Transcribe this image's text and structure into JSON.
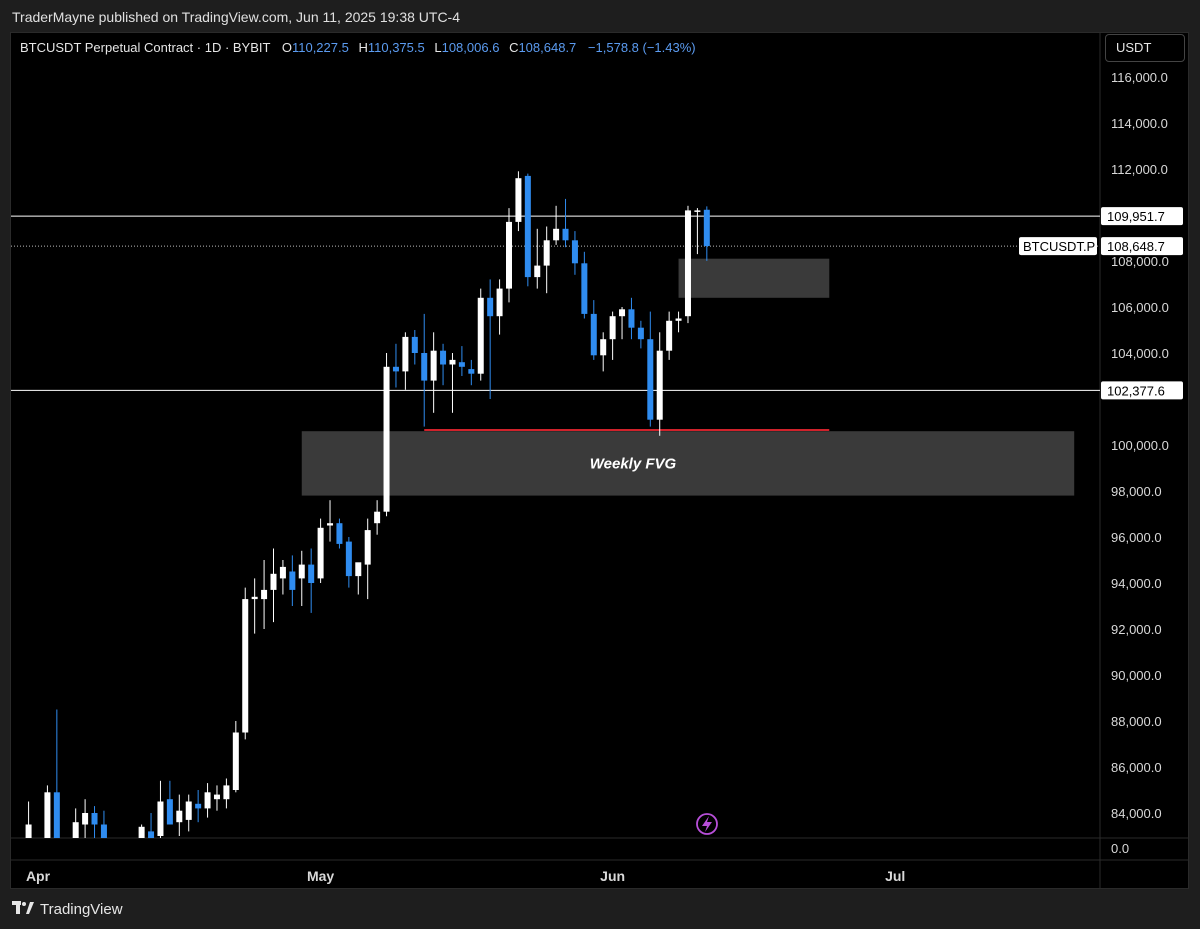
{
  "publish_line": "TraderMayne published on TradingView.com, Jun 11, 2025 19:38 UTC-4",
  "header": {
    "symbol": "BTCUSDT Perpetual Contract · 1D · BYBIT",
    "o_label": "O",
    "o_value": "110,227.5",
    "h_label": "H",
    "h_value": "110,375.5",
    "l_label": "L",
    "l_value": "108,006.6",
    "c_label": "C",
    "c_value": "108,648.7",
    "change": "−1,578.8 (−1.43%)"
  },
  "currency": "USDT",
  "footer_brand": "TradingView",
  "colors": {
    "background": "#000000",
    "up_candle": "#ffffff",
    "down_candle": "#2f8cf0",
    "level_line": "#ffffff",
    "fvg_line": "#d0222b",
    "zone_fill": "#3a3a3a",
    "accent": "#5b9bf0",
    "lightning": "#b84fd9"
  },
  "icons": {
    "lightning": "lightning-icon",
    "logo": "tradingview-logo-icon"
  },
  "chart_data": {
    "type": "candlestick",
    "ylim": [
      82800,
      117000
    ],
    "y_ticks": [
      "116,000.0",
      "114,000.0",
      "112,000.0",
      "108,000.0",
      "106,000.0",
      "104,000.0",
      "100,000.0",
      "98,000.0",
      "96,000.0",
      "94,000.0",
      "92,000.0",
      "90,000.0",
      "88,000.0",
      "86,000.0",
      "84,000.0"
    ],
    "y_tick_values": [
      116000,
      114000,
      112000,
      108000,
      106000,
      104000,
      100000,
      98000,
      96000,
      94000,
      92000,
      90000,
      88000,
      86000,
      84000
    ],
    "zero_label": "0.0",
    "x_ticks": [
      "Apr",
      "May",
      "Jun",
      "Jul"
    ],
    "x_tick_values": [
      "2025-04-01",
      "2025-05-01",
      "2025-06-01",
      "2025-07-01"
    ],
    "horizontal_levels": [
      {
        "value": 109951.7,
        "label": "109,951.7"
      },
      {
        "value": 102377.6,
        "label": "102,377.6"
      }
    ],
    "current_price": {
      "value": 108648.7,
      "label": "108,648.7",
      "symbol": "BTCUSDT.P"
    },
    "zones": [
      {
        "label": "",
        "top": 108100,
        "bottom": 106400,
        "from": "2025-06-08",
        "to": "2025-06-24"
      },
      {
        "label": "Weekly FVG",
        "top": 100600,
        "bottom": 97800,
        "from": "2025-04-29",
        "to": "2025-07-20"
      }
    ],
    "red_line": {
      "value": 100650,
      "from": "2025-05-12",
      "to": "2025-06-24"
    },
    "candles": [
      {
        "d": "2025-03-31",
        "o": 82800,
        "h": 84500,
        "l": 82700,
        "c": 83500
      },
      {
        "d": "2025-04-02",
        "o": 82700,
        "h": 85200,
        "l": 82700,
        "c": 84900
      },
      {
        "d": "2025-04-03",
        "o": 84900,
        "h": 88500,
        "l": 82700,
        "c": 82800
      },
      {
        "d": "2025-04-05",
        "o": 82800,
        "h": 84200,
        "l": 82700,
        "c": 83600
      },
      {
        "d": "2025-04-06",
        "o": 83500,
        "h": 84600,
        "l": 82700,
        "c": 84000
      },
      {
        "d": "2025-04-07",
        "o": 84000,
        "h": 84300,
        "l": 82800,
        "c": 83500
      },
      {
        "d": "2025-04-08",
        "o": 83500,
        "h": 84100,
        "l": 82800,
        "c": 82800
      },
      {
        "d": "2025-04-12",
        "o": 82800,
        "h": 83500,
        "l": 82700,
        "c": 83400
      },
      {
        "d": "2025-04-13",
        "o": 83200,
        "h": 84000,
        "l": 82700,
        "c": 82900
      },
      {
        "d": "2025-04-14",
        "o": 83000,
        "h": 85400,
        "l": 82800,
        "c": 84500
      },
      {
        "d": "2025-04-15",
        "o": 84600,
        "h": 85400,
        "l": 83500,
        "c": 83500
      },
      {
        "d": "2025-04-16",
        "o": 83600,
        "h": 84800,
        "l": 83000,
        "c": 84100
      },
      {
        "d": "2025-04-17",
        "o": 83700,
        "h": 84800,
        "l": 83200,
        "c": 84500
      },
      {
        "d": "2025-04-18",
        "o": 84400,
        "h": 85000,
        "l": 83600,
        "c": 84200
      },
      {
        "d": "2025-04-19",
        "o": 84200,
        "h": 85300,
        "l": 83800,
        "c": 84900
      },
      {
        "d": "2025-04-20",
        "o": 84600,
        "h": 85200,
        "l": 84100,
        "c": 84800
      },
      {
        "d": "2025-04-21",
        "o": 84600,
        "h": 85500,
        "l": 84200,
        "c": 85200
      },
      {
        "d": "2025-04-22",
        "o": 85000,
        "h": 88000,
        "l": 84900,
        "c": 87500
      },
      {
        "d": "2025-04-23",
        "o": 87500,
        "h": 93800,
        "l": 87200,
        "c": 93300
      },
      {
        "d": "2025-04-24",
        "o": 93300,
        "h": 94200,
        "l": 91800,
        "c": 93400
      },
      {
        "d": "2025-04-25",
        "o": 93300,
        "h": 95000,
        "l": 92000,
        "c": 93700
      },
      {
        "d": "2025-04-26",
        "o": 93700,
        "h": 95500,
        "l": 92300,
        "c": 94400
      },
      {
        "d": "2025-04-27",
        "o": 94200,
        "h": 95000,
        "l": 93500,
        "c": 94700
      },
      {
        "d": "2025-04-28",
        "o": 94500,
        "h": 95200,
        "l": 93000,
        "c": 93700
      },
      {
        "d": "2025-04-29",
        "o": 94200,
        "h": 95400,
        "l": 93000,
        "c": 94800
      },
      {
        "d": "2025-04-30",
        "o": 94800,
        "h": 95500,
        "l": 92700,
        "c": 94000
      },
      {
        "d": "2025-05-01",
        "o": 94200,
        "h": 96800,
        "l": 94000,
        "c": 96400
      },
      {
        "d": "2025-05-02",
        "o": 96500,
        "h": 97600,
        "l": 95800,
        "c": 96600
      },
      {
        "d": "2025-05-03",
        "o": 96600,
        "h": 96800,
        "l": 95500,
        "c": 95700
      },
      {
        "d": "2025-05-04",
        "o": 95800,
        "h": 96000,
        "l": 93800,
        "c": 94300
      },
      {
        "d": "2025-05-05",
        "o": 94300,
        "h": 94800,
        "l": 93500,
        "c": 94900
      },
      {
        "d": "2025-05-06",
        "o": 94800,
        "h": 96800,
        "l": 93300,
        "c": 96300
      },
      {
        "d": "2025-05-07",
        "o": 96600,
        "h": 97600,
        "l": 96100,
        "c": 97100
      },
      {
        "d": "2025-05-08",
        "o": 97100,
        "h": 104000,
        "l": 96900,
        "c": 103400
      },
      {
        "d": "2025-05-09",
        "o": 103400,
        "h": 104400,
        "l": 102500,
        "c": 103200
      },
      {
        "d": "2025-05-10",
        "o": 103200,
        "h": 104900,
        "l": 102400,
        "c": 104700
      },
      {
        "d": "2025-05-11",
        "o": 104700,
        "h": 105000,
        "l": 103500,
        "c": 104000
      },
      {
        "d": "2025-05-12",
        "o": 104000,
        "h": 105700,
        "l": 100800,
        "c": 102800
      },
      {
        "d": "2025-05-13",
        "o": 102800,
        "h": 104900,
        "l": 101400,
        "c": 104100
      },
      {
        "d": "2025-05-14",
        "o": 104100,
        "h": 104400,
        "l": 102600,
        "c": 103500
      },
      {
        "d": "2025-05-15",
        "o": 103500,
        "h": 104000,
        "l": 101400,
        "c": 103700
      },
      {
        "d": "2025-05-16",
        "o": 103600,
        "h": 104300,
        "l": 103000,
        "c": 103400
      },
      {
        "d": "2025-05-17",
        "o": 103300,
        "h": 103700,
        "l": 102600,
        "c": 103100
      },
      {
        "d": "2025-05-18",
        "o": 103100,
        "h": 106800,
        "l": 102800,
        "c": 106400
      },
      {
        "d": "2025-05-19",
        "o": 106400,
        "h": 107200,
        "l": 102000,
        "c": 105600
      },
      {
        "d": "2025-05-20",
        "o": 105600,
        "h": 107200,
        "l": 104800,
        "c": 106800
      },
      {
        "d": "2025-05-21",
        "o": 106800,
        "h": 110300,
        "l": 106200,
        "c": 109700
      },
      {
        "d": "2025-05-22",
        "o": 109700,
        "h": 111900,
        "l": 109300,
        "c": 111600
      },
      {
        "d": "2025-05-23",
        "o": 111700,
        "h": 111800,
        "l": 106900,
        "c": 107300
      },
      {
        "d": "2025-05-24",
        "o": 107300,
        "h": 109400,
        "l": 106800,
        "c": 107800
      },
      {
        "d": "2025-05-25",
        "o": 107800,
        "h": 109500,
        "l": 106600,
        "c": 108900
      },
      {
        "d": "2025-05-26",
        "o": 108900,
        "h": 110400,
        "l": 108700,
        "c": 109400
      },
      {
        "d": "2025-05-27",
        "o": 109400,
        "h": 110700,
        "l": 108600,
        "c": 108900
      },
      {
        "d": "2025-05-28",
        "o": 108900,
        "h": 109300,
        "l": 107400,
        "c": 107900
      },
      {
        "d": "2025-05-29",
        "o": 107900,
        "h": 108400,
        "l": 105500,
        "c": 105700
      },
      {
        "d": "2025-05-30",
        "o": 105700,
        "h": 106300,
        "l": 103700,
        "c": 103900
      },
      {
        "d": "2025-05-31",
        "o": 103900,
        "h": 104900,
        "l": 103200,
        "c": 104600
      },
      {
        "d": "2025-06-01",
        "o": 104600,
        "h": 105800,
        "l": 103700,
        "c": 105600
      },
      {
        "d": "2025-06-02",
        "o": 105600,
        "h": 106000,
        "l": 104600,
        "c": 105900
      },
      {
        "d": "2025-06-03",
        "o": 105900,
        "h": 106400,
        "l": 104600,
        "c": 105100
      },
      {
        "d": "2025-06-04",
        "o": 105100,
        "h": 105400,
        "l": 104200,
        "c": 104600
      },
      {
        "d": "2025-06-05",
        "o": 104600,
        "h": 105800,
        "l": 100800,
        "c": 101100
      },
      {
        "d": "2025-06-06",
        "o": 101100,
        "h": 104900,
        "l": 100400,
        "c": 104100
      },
      {
        "d": "2025-06-07",
        "o": 104100,
        "h": 105800,
        "l": 103700,
        "c": 105400
      },
      {
        "d": "2025-06-08",
        "o": 105400,
        "h": 105800,
        "l": 104900,
        "c": 105500
      },
      {
        "d": "2025-06-09",
        "o": 105600,
        "h": 110400,
        "l": 105300,
        "c": 110200
      },
      {
        "d": "2025-06-10",
        "o": 110200,
        "h": 110300,
        "l": 108300,
        "c": 110200
      },
      {
        "d": "2025-06-11",
        "o": 110227.5,
        "h": 110375.5,
        "l": 108006.6,
        "c": 108648.7
      }
    ]
  }
}
